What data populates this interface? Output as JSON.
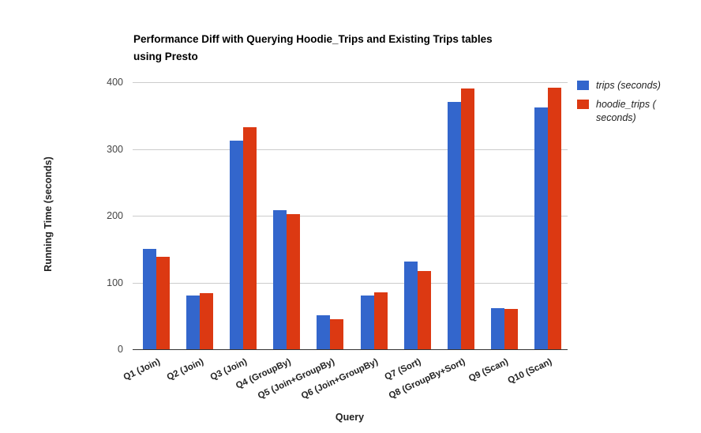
{
  "header": {
    "title_lines": [
      "Performance Diff with Querying Hoodie_Trips and Existing Trips tables",
      "using Presto"
    ]
  },
  "chart_data": {
    "type": "bar",
    "title": "Performance Diff with Querying Hoodie_Trips and Existing Trips tables using Presto",
    "xlabel": "Query",
    "ylabel": "Running Time (seconds)",
    "ylim": [
      0,
      400
    ],
    "yticks": [
      0,
      100,
      200,
      300,
      400
    ],
    "grid": true,
    "legend_position": "top-right",
    "categories": [
      "Q1 (Join)",
      "Q2 (Join)",
      "Q3 (Join)",
      "Q4 (GroupBy)",
      "Q5 (Join+GroupBy)",
      "Q6 (Join+GroupBy)",
      "Q7 (Sort)",
      "Q8 (GroupBy+Sort)",
      "Q9 (Scan)",
      "Q10 (Scan)"
    ],
    "series": [
      {
        "name": "trips (seconds)",
        "color": "#3366CC",
        "values": [
          150,
          81,
          313,
          208,
          51,
          81,
          131,
          370,
          61,
          362
        ]
      },
      {
        "name": "hoodie_trips (seconds)",
        "color": "#DC3912",
        "values": [
          138,
          84,
          332,
          202,
          45,
          85,
          117,
          390,
          60,
          392
        ]
      }
    ]
  },
  "legend": {
    "items": [
      {
        "color": "#3366CC",
        "lines": [
          "trips (seconds)"
        ]
      },
      {
        "color": "#DC3912",
        "lines": [
          "hoodie_trips (",
          "seconds)"
        ]
      }
    ]
  }
}
